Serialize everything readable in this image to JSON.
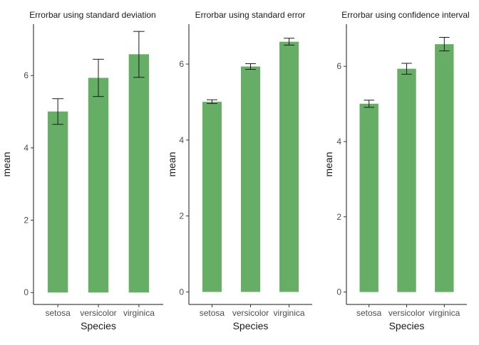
{
  "chart_data": [
    {
      "type": "bar",
      "title": "Errorbar using standard deviation",
      "xlabel": "Species",
      "ylabel": "mean",
      "categories": [
        "setosa",
        "versicolor",
        "virginica"
      ],
      "values": [
        5.006,
        5.936,
        6.588
      ],
      "error_low": [
        4.65,
        5.42,
        5.95
      ],
      "error_high": [
        5.36,
        6.45,
        7.22
      ],
      "ylim": [
        -0.33,
        7.42
      ],
      "yticks": [
        0,
        2,
        4,
        6
      ],
      "ytick_labels": [
        "0",
        "2",
        "4",
        "6"
      ],
      "bar_color": "#66ae66",
      "grid": false,
      "legend": "none"
    },
    {
      "type": "bar",
      "title": "Errorbar using standard error",
      "xlabel": "Species",
      "ylabel": "mean",
      "categories": [
        "setosa",
        "versicolor",
        "virginica"
      ],
      "values": [
        5.006,
        5.936,
        6.588
      ],
      "error_low": [
        4.96,
        5.86,
        6.5
      ],
      "error_high": [
        5.06,
        6.01,
        6.68
      ],
      "ylim": [
        -0.33,
        7.05
      ],
      "yticks": [
        0,
        2,
        4,
        6
      ],
      "ytick_labels": [
        "0",
        "2",
        "4",
        "6"
      ],
      "bar_color": "#66ae66",
      "grid": false,
      "legend": "none"
    },
    {
      "type": "bar",
      "title": "Errorbar using confidence interval",
      "xlabel": "Species",
      "ylabel": "mean",
      "categories": [
        "setosa",
        "versicolor",
        "virginica"
      ],
      "values": [
        5.006,
        5.936,
        6.588
      ],
      "error_low": [
        4.91,
        5.79,
        6.41
      ],
      "error_high": [
        5.1,
        6.08,
        6.77
      ],
      "ylim": [
        -0.33,
        7.12
      ],
      "yticks": [
        0,
        2,
        4,
        6
      ],
      "ytick_labels": [
        "0",
        "2",
        "4",
        "6"
      ],
      "bar_color": "#66ae66",
      "grid": false,
      "legend": "none"
    }
  ]
}
